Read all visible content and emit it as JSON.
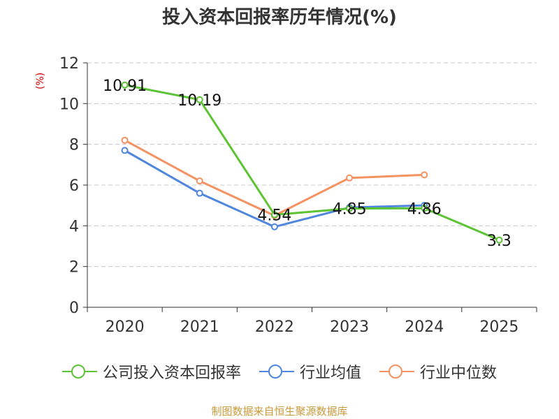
{
  "chart_data": {
    "type": "line",
    "title": "投入资本回报率历年情况(%)",
    "ylabel": "(%)",
    "xlabel": "",
    "categories": [
      "2020",
      "2021",
      "2022",
      "2023",
      "2024",
      "2025"
    ],
    "ylim": [
      0,
      12
    ],
    "yticks": [
      0,
      2,
      4,
      6,
      8,
      10,
      12
    ],
    "grid": true,
    "legend_position": "bottom",
    "series": [
      {
        "name": "公司投入资本回报率",
        "color": "#5cc334",
        "values": [
          10.91,
          10.19,
          4.54,
          4.85,
          4.86,
          3.3
        ],
        "labels": [
          "10.91",
          "10.19",
          "4.54",
          "4.85",
          "4.86",
          "3.3"
        ]
      },
      {
        "name": "行业均值",
        "color": "#4f86de",
        "values": [
          7.7,
          5.6,
          3.95,
          4.9,
          5.0,
          null
        ]
      },
      {
        "name": "行业中位数",
        "color": "#f59262",
        "values": [
          8.2,
          6.2,
          4.5,
          6.35,
          6.5,
          null
        ]
      }
    ],
    "source": "制图数据来自恒生聚源数据库"
  }
}
